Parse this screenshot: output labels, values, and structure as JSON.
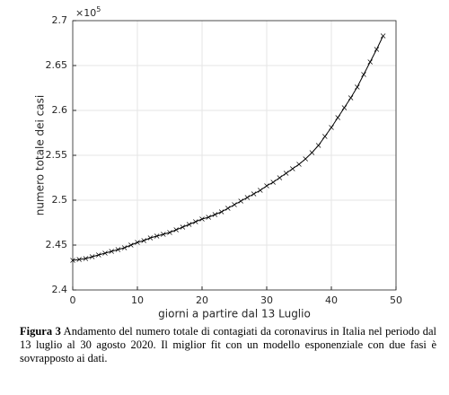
{
  "chart_data": {
    "type": "line",
    "marker": "x",
    "color": "#000000",
    "xlabel": "giorni a partire dal 13 Luglio",
    "ylabel": "numero totale dei casi",
    "y_multiplier_base": "×10",
    "y_multiplier_exponent": "5",
    "x": [
      0,
      1,
      2,
      3,
      4,
      5,
      6,
      7,
      8,
      9,
      10,
      11,
      12,
      13,
      14,
      15,
      16,
      17,
      18,
      19,
      20,
      21,
      22,
      23,
      24,
      25,
      26,
      27,
      28,
      29,
      30,
      31,
      32,
      33,
      34,
      35,
      36,
      37,
      38,
      39,
      40,
      41,
      42,
      43,
      44,
      45,
      46,
      47,
      48
    ],
    "values": [
      2.433,
      2.434,
      2.435,
      2.437,
      2.439,
      2.441,
      2.443,
      2.445,
      2.447,
      2.45,
      2.453,
      2.455,
      2.458,
      2.46,
      2.462,
      2.464,
      2.467,
      2.47,
      2.473,
      2.476,
      2.479,
      2.481,
      2.484,
      2.487,
      2.491,
      2.495,
      2.499,
      2.503,
      2.507,
      2.511,
      2.516,
      2.52,
      2.525,
      2.53,
      2.535,
      2.54,
      2.546,
      2.553,
      2.561,
      2.571,
      2.581,
      2.592,
      2.603,
      2.614,
      2.626,
      2.64,
      2.654,
      2.668,
      2.683
    ],
    "xlim": [
      0,
      50
    ],
    "xticks": [
      0,
      10,
      20,
      30,
      40,
      50
    ],
    "ylim": [
      2.4,
      2.7
    ],
    "yticks": [
      2.4,
      2.45,
      2.5,
      2.55,
      2.6,
      2.65,
      2.7
    ],
    "grid": true
  },
  "caption": {
    "label": "Figura 3",
    "text": "Andamento del numero totale di contagiati da coronavirus in Italia nel periodo dal 13 luglio al 30 agosto 2020. Il miglior fit con un modello esponenziale con due fasi è sovrapposto ai dati."
  }
}
